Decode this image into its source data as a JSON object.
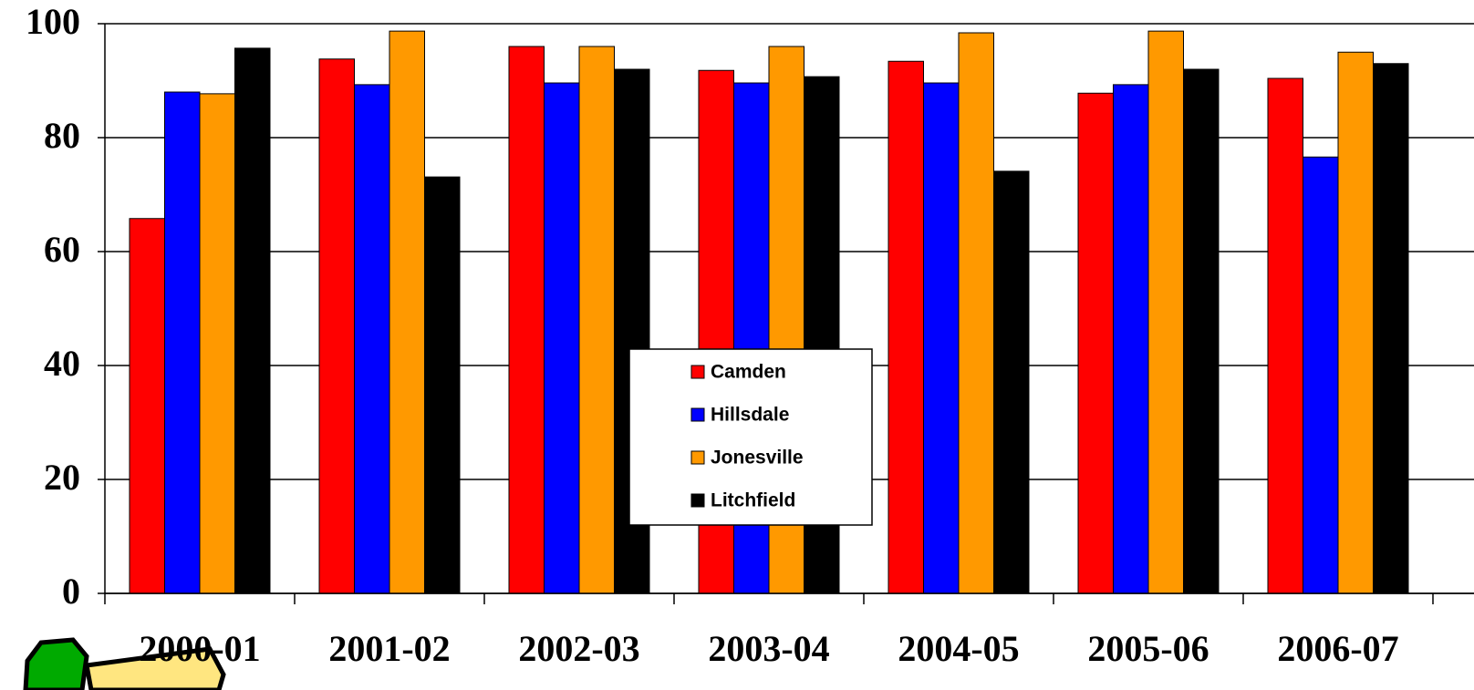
{
  "chart_data": {
    "type": "bar",
    "categories": [
      "2000-01",
      "2001-02",
      "2002-03",
      "2003-04",
      "2004-05",
      "2005-06",
      "2006-07"
    ],
    "series": [
      {
        "name": "Camden",
        "color": "#ff0000",
        "values": [
          65.8,
          93.8,
          96,
          91.8,
          93.4,
          87.8,
          90.4
        ]
      },
      {
        "name": "Hillsdale",
        "color": "#0000ff",
        "values": [
          88,
          89.3,
          89.6,
          89.6,
          89.6,
          89.3,
          76.6
        ]
      },
      {
        "name": "Jonesville",
        "color": "#ff9900",
        "values": [
          87.7,
          98.7,
          96,
          96,
          98.4,
          98.7,
          95
        ]
      },
      {
        "name": "Litchfield",
        "color": "#000000",
        "values": [
          95.7,
          73.1,
          92,
          90.7,
          74.1,
          92,
          93
        ]
      }
    ],
    "ylim": [
      0,
      100
    ],
    "yticks": [
      0,
      20,
      40,
      60,
      80,
      100
    ],
    "grid": true,
    "legend_position": "center"
  }
}
